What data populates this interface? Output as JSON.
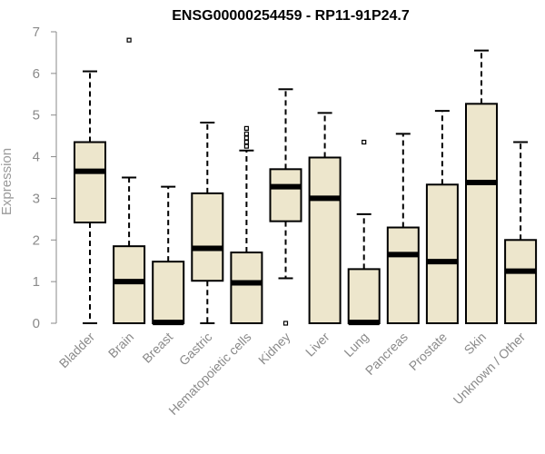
{
  "chart_data": {
    "type": "box",
    "title": "ENSG00000254459 - RP11-91P24.7",
    "xlabel": "",
    "ylabel": "Expression",
    "ylim": [
      0,
      7
    ],
    "yticks": [
      "0",
      "1",
      "2",
      "3",
      "4",
      "5",
      "6",
      "7"
    ],
    "grid": false,
    "box_fill": "#ede6cc",
    "box_stroke": "#000000",
    "categories": [
      "Bladder",
      "Brain",
      "Breast",
      "Gastric",
      "Hematopoietic cells",
      "Kidney",
      "Liver",
      "Lung",
      "Pancreas",
      "Prostate",
      "Skin",
      "Unknown / Other"
    ],
    "boxes": [
      {
        "whisker_low": 0,
        "q1": 2.42,
        "median": 3.65,
        "q3": 4.35,
        "whisker_high": 6.05,
        "outliers": []
      },
      {
        "whisker_low": 0,
        "q1": 0,
        "median": 1.0,
        "q3": 1.85,
        "whisker_high": 3.5,
        "outliers": [
          6.8
        ]
      },
      {
        "whisker_low": 0,
        "q1": 0,
        "median": 0.02,
        "q3": 1.48,
        "whisker_high": 3.28,
        "outliers": []
      },
      {
        "whisker_low": 0,
        "q1": 1.02,
        "median": 1.8,
        "q3": 3.12,
        "whisker_high": 4.82,
        "outliers": []
      },
      {
        "whisker_low": 0,
        "q1": 0,
        "median": 0.97,
        "q3": 1.7,
        "whisker_high": 4.15,
        "outliers": [
          4.25,
          4.35,
          4.45,
          4.55,
          4.68
        ]
      },
      {
        "whisker_low": 1.08,
        "q1": 2.45,
        "median": 3.28,
        "q3": 3.7,
        "whisker_high": 5.62,
        "outliers": [
          0
        ]
      },
      {
        "whisker_low": 0,
        "q1": 0,
        "median": 3.0,
        "q3": 3.98,
        "whisker_high": 5.05,
        "outliers": []
      },
      {
        "whisker_low": 0,
        "q1": 0,
        "median": 0.02,
        "q3": 1.3,
        "whisker_high": 2.62,
        "outliers": [
          4.35
        ]
      },
      {
        "whisker_low": 0,
        "q1": 0,
        "median": 1.65,
        "q3": 2.3,
        "whisker_high": 4.55,
        "outliers": []
      },
      {
        "whisker_low": 0,
        "q1": 0,
        "median": 1.48,
        "q3": 3.33,
        "whisker_high": 5.1,
        "outliers": []
      },
      {
        "whisker_low": 0,
        "q1": 0,
        "median": 3.38,
        "q3": 5.27,
        "whisker_high": 6.55,
        "outliers": []
      },
      {
        "whisker_low": 0,
        "q1": 0,
        "median": 1.25,
        "q3": 2.0,
        "whisker_high": 4.35,
        "outliers": []
      }
    ]
  }
}
